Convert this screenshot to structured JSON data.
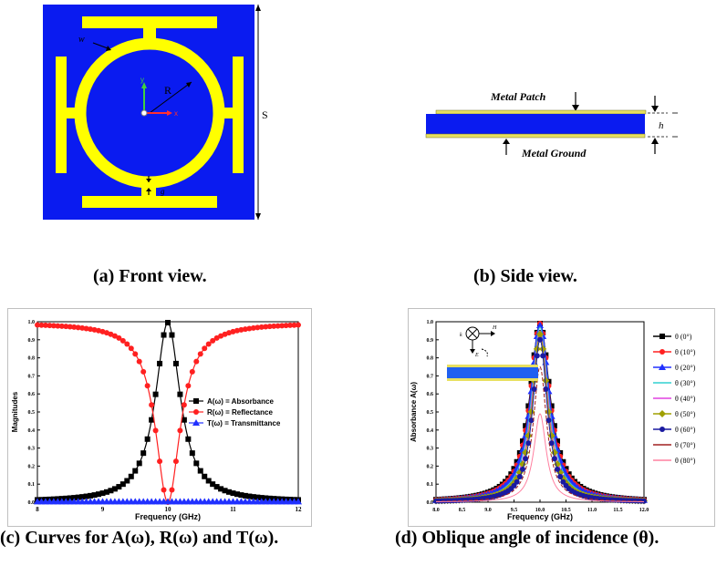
{
  "figure_a": {
    "caption": "(a) Front view.",
    "labels": {
      "w": "w",
      "R": "R",
      "S": "S",
      "y": "y",
      "x": "x",
      "g": "g"
    },
    "colors": {
      "substrate": "#0a1bf0",
      "metal": "#ffff00"
    }
  },
  "figure_b": {
    "caption": "(b) Side view.",
    "labels": {
      "patch": "Metal Patch",
      "ground": "Metal Ground",
      "h": "h"
    },
    "colors": {
      "substrate": "#0a1bf0",
      "metal": "#e8e060"
    }
  },
  "figure_c": {
    "caption": "(c) Curves for A(ω), R(ω) and T(ω).",
    "chart_data": {
      "type": "line",
      "xlabel": "Frequency (GHz)",
      "ylabel": "Magnitudes",
      "xlim": [
        8,
        12
      ],
      "ylim": [
        0,
        1.0
      ],
      "xticks": [
        "8",
        "9",
        "10",
        "11",
        "12"
      ],
      "yticks": [
        "0.0",
        "0.1",
        "0.2",
        "0.3",
        "0.4",
        "0.5",
        "0.6",
        "0.7",
        "0.8",
        "0.9",
        "1.0"
      ],
      "legend_position": "right",
      "resonance_ghz": 10.0,
      "half_width_ghz": 0.23,
      "series": [
        {
          "name": "A(ω) = Absorbance",
          "color": "#000000",
          "marker": "square"
        },
        {
          "name": "R(ω) = Reflectance",
          "color": "#ff2020",
          "marker": "circle"
        },
        {
          "name": "T(ω) = Transmittance",
          "color": "#2030ff",
          "marker": "triangle"
        }
      ]
    }
  },
  "figure_d": {
    "caption": "(d) Oblique angle of incidence (θ).",
    "inset_labels": {
      "k": "k",
      "E": "E",
      "H": "H"
    },
    "chart_data": {
      "type": "line",
      "xlabel": "Frequency (GHz)",
      "ylabel": "Absorbance A(ω)",
      "xlim": [
        8.0,
        12.0
      ],
      "ylim": [
        0,
        1.0
      ],
      "xticks": [
        "8.0",
        "8.5",
        "9.0",
        "9.5",
        "10.0",
        "10.5",
        "11.0",
        "11.5",
        "12.0"
      ],
      "yticks": [
        "0.0",
        "0.1",
        "0.2",
        "0.3",
        "0.4",
        "0.5",
        "0.6",
        "0.7",
        "0.8",
        "0.9",
        "1.0"
      ],
      "legend_position": "right",
      "resonance_ghz": 10.0,
      "series": [
        {
          "name": "θ (0°)",
          "peak": 0.99,
          "color": "#000000",
          "marker": "square"
        },
        {
          "name": "θ (10°)",
          "peak": 0.99,
          "color": "#ff2020",
          "marker": "circle"
        },
        {
          "name": "θ (20°)",
          "peak": 0.98,
          "color": "#2030ff",
          "marker": "triangle"
        },
        {
          "name": "θ (30°)",
          "peak": 0.97,
          "color": "#30d0d0",
          "marker": "none"
        },
        {
          "name": "θ (40°)",
          "peak": 0.95,
          "color": "#e040e0",
          "marker": "none"
        },
        {
          "name": "θ (50°)",
          "peak": 0.93,
          "color": "#a0a000",
          "marker": "diamond"
        },
        {
          "name": "θ (60°)",
          "peak": 0.9,
          "color": "#1a1aa0",
          "marker": "circle"
        },
        {
          "name": "θ (70°)",
          "peak": 0.75,
          "color": "#a02020",
          "marker": "none"
        },
        {
          "name": "θ (80°)",
          "peak": 0.49,
          "color": "#ff80a0",
          "marker": "none"
        }
      ]
    }
  }
}
